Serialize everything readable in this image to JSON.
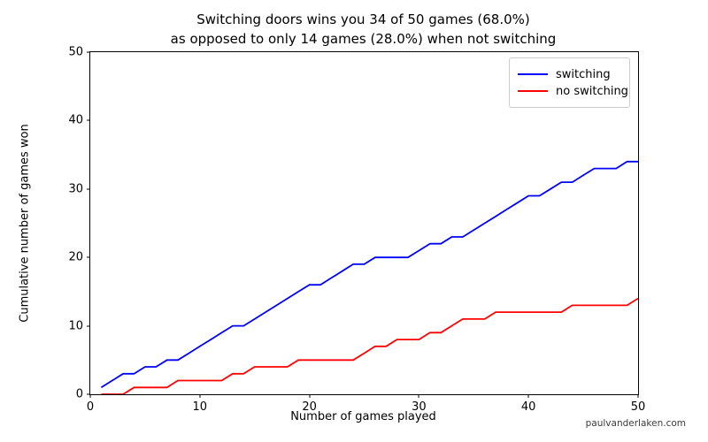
{
  "title": {
    "line1": "Switching doors wins you 34 of 50 games (68.0%)",
    "line2": "as opposed to only 14 games (28.0%) when not switching"
  },
  "axes": {
    "xlabel": "Number of games played",
    "ylabel": "Cumulative number of games won",
    "x_ticks": [
      "0",
      "10",
      "20",
      "30",
      "40",
      "50"
    ],
    "y_ticks": [
      "0",
      "10",
      "20",
      "30",
      "40",
      "50"
    ]
  },
  "legend": {
    "position": "upper right",
    "items": [
      {
        "label": "switching",
        "color": "#0000ff"
      },
      {
        "label": "no switching",
        "color": "#ff0000"
      }
    ]
  },
  "watermark": "paulvanderlaken.com",
  "colors": {
    "switching_line": "#0000ff",
    "no_switching_line": "#ff0000",
    "spine": "#000000",
    "legend_border": "#cccccc"
  },
  "chart_data": {
    "type": "line",
    "title": "Switching doors wins you 34 of 50 games (68.0%) as opposed to only 14 games (28.0%) when not switching",
    "xlabel": "Number of games played",
    "ylabel": "Cumulative number of games won",
    "xlim": [
      0,
      50
    ],
    "ylim": [
      0,
      50
    ],
    "grid": false,
    "legend_position": "upper right",
    "x": [
      1,
      2,
      3,
      4,
      5,
      6,
      7,
      8,
      9,
      10,
      11,
      12,
      13,
      14,
      15,
      16,
      17,
      18,
      19,
      20,
      21,
      22,
      23,
      24,
      25,
      26,
      27,
      28,
      29,
      30,
      31,
      32,
      33,
      34,
      35,
      36,
      37,
      38,
      39,
      40,
      41,
      42,
      43,
      44,
      45,
      46,
      47,
      48,
      49,
      50
    ],
    "series": [
      {
        "name": "switching",
        "color": "#0000ff",
        "final_value": 34,
        "values": [
          1,
          2,
          3,
          3,
          4,
          4,
          5,
          5,
          6,
          7,
          8,
          9,
          10,
          10,
          11,
          12,
          13,
          14,
          15,
          16,
          16,
          17,
          18,
          19,
          19,
          20,
          20,
          20,
          20,
          21,
          22,
          22,
          23,
          23,
          24,
          25,
          26,
          27,
          28,
          29,
          29,
          30,
          31,
          31,
          32,
          33,
          33,
          33,
          34,
          34
        ]
      },
      {
        "name": "no switching",
        "color": "#ff0000",
        "final_value": 14,
        "values": [
          0,
          0,
          0,
          1,
          1,
          1,
          1,
          2,
          2,
          2,
          2,
          2,
          3,
          3,
          4,
          4,
          4,
          4,
          5,
          5,
          5,
          5,
          5,
          5,
          6,
          7,
          7,
          8,
          8,
          8,
          9,
          9,
          10,
          11,
          11,
          11,
          12,
          12,
          12,
          12,
          12,
          12,
          12,
          13,
          13,
          13,
          13,
          13,
          13,
          14
        ]
      }
    ]
  }
}
